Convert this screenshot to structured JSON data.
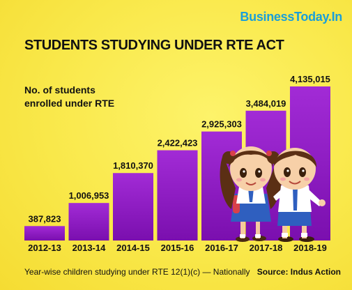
{
  "brand": "BusinessToday.In",
  "source": "Source: Indus Action",
  "footnote": "Year-wise children studying under RTE 12(1)(c) — Nationally",
  "colors": {
    "bar_top": "#a22bd6",
    "bar_bottom": "#7a0fae",
    "brand": "#1a9fd9",
    "background": "#f9e84a"
  },
  "illustration": "cartoon-school-children",
  "chart_data": {
    "type": "bar",
    "title": "STUDENTS STUDYING UNDER RTE ACT",
    "ylabel": "No. of students enrolled under RTE",
    "xlabel": "",
    "categories": [
      "2012-13",
      "2013-14",
      "2014-15",
      "2015-16",
      "2016-17",
      "2017-18",
      "2018-19"
    ],
    "values": [
      387823,
      1006953,
      1810370,
      2422423,
      2925303,
      3484019,
      4135015
    ],
    "value_labels": [
      "387,823",
      "1,006,953",
      "1,810,370",
      "2,422,423",
      "2,925,303",
      "3,484,019",
      "4,135,015"
    ],
    "ylim": [
      0,
      4135015
    ],
    "grid": false,
    "legend": "none"
  }
}
